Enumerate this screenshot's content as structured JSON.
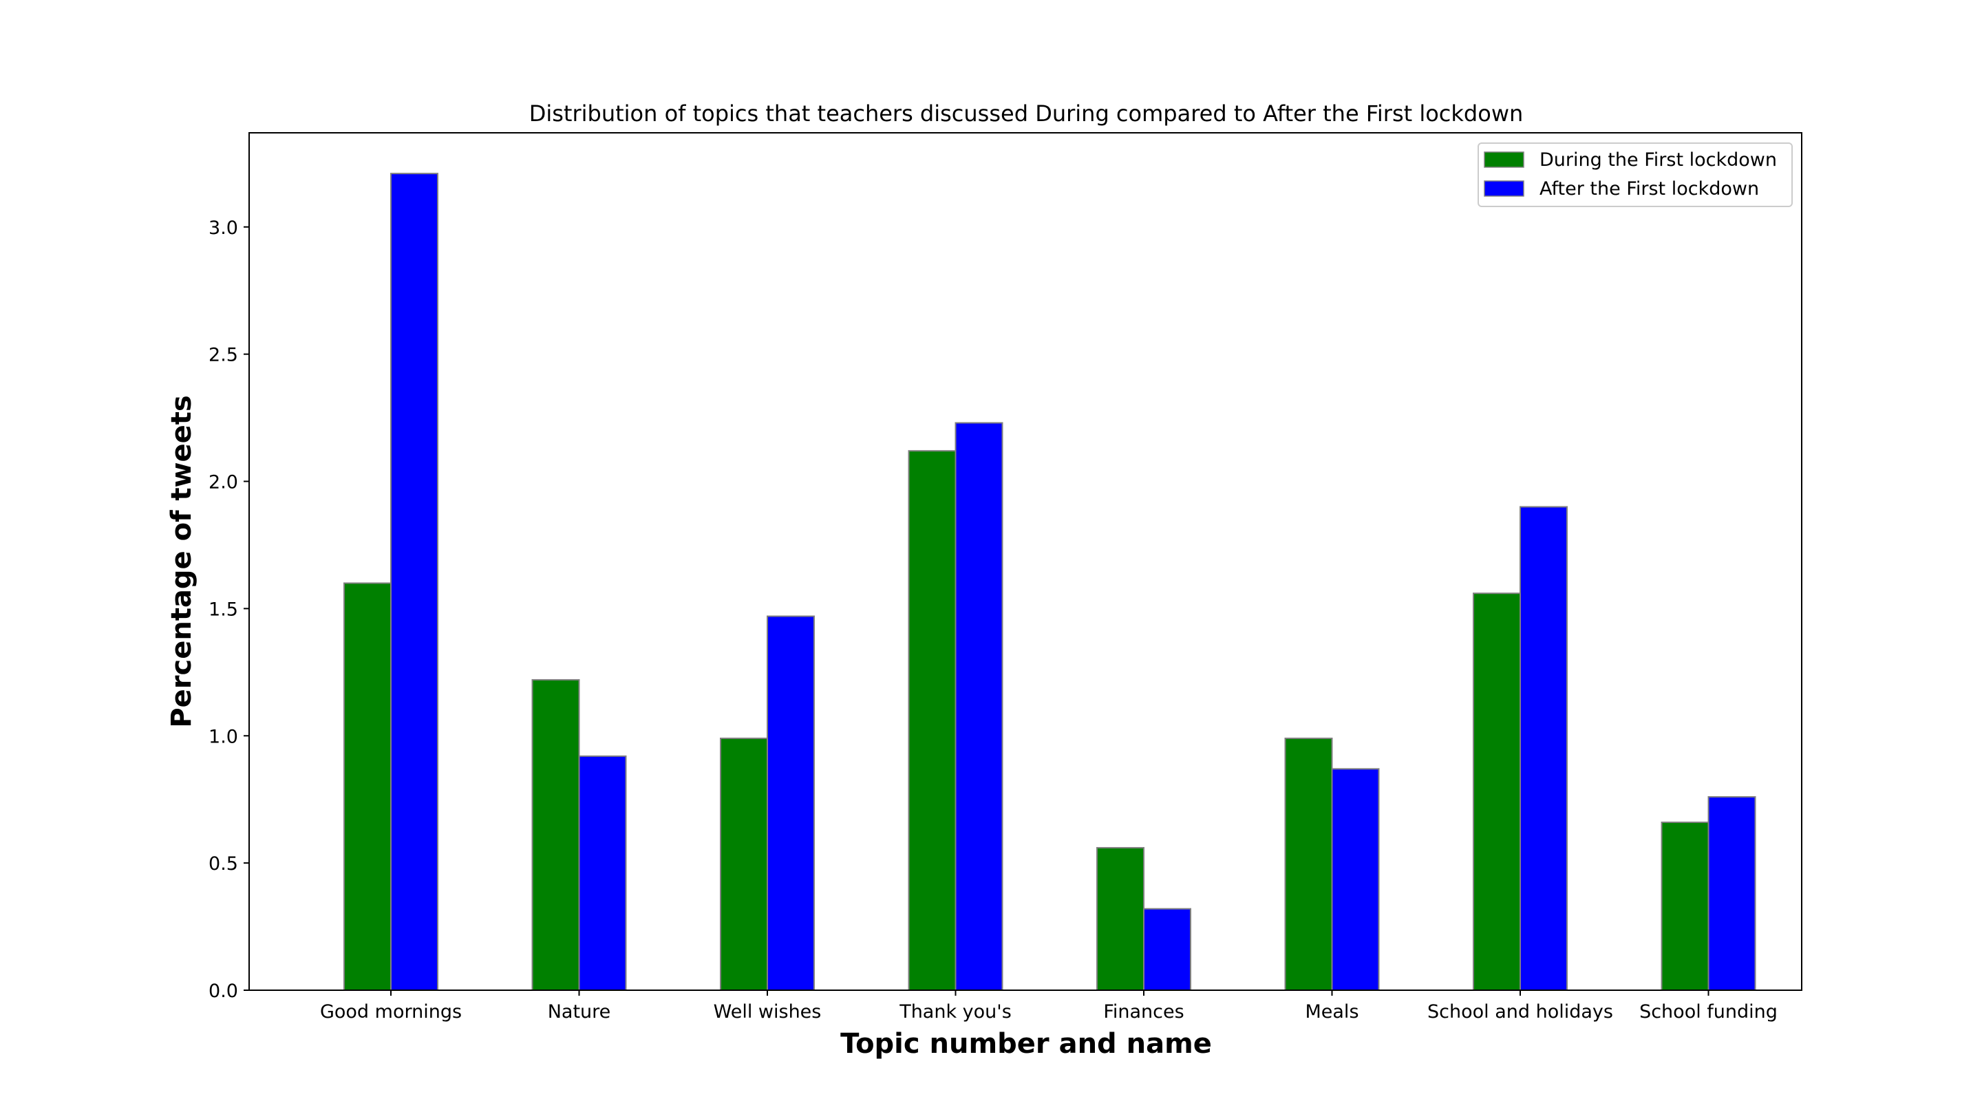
{
  "chart_data": {
    "type": "bar",
    "title": "Distribution of topics that teachers discussed During compared to After the First lockdown",
    "xlabel": "Topic number and name",
    "ylabel": "Percentage of tweets",
    "categories": [
      "Good mornings",
      "Nature",
      "Well wishes",
      "Thank you's",
      "Finances",
      "Meals",
      "School and  holidays",
      "School funding"
    ],
    "series": [
      {
        "name": "During the First lockdown",
        "color": "#008000",
        "values": [
          1.6,
          1.22,
          0.99,
          2.12,
          0.56,
          0.99,
          1.56,
          0.66
        ]
      },
      {
        "name": "After the First lockdown",
        "color": "#0000ff",
        "values": [
          3.21,
          0.92,
          1.47,
          2.23,
          0.32,
          0.87,
          1.9,
          0.76
        ]
      }
    ],
    "ylim": [
      0,
      3.37
    ],
    "yticks": [
      "0.0",
      "0.5",
      "1.0",
      "1.5",
      "2.0",
      "2.5",
      "3.0"
    ],
    "bar_edge_color": "#808080",
    "grid": false,
    "legend_position": "top-right"
  }
}
